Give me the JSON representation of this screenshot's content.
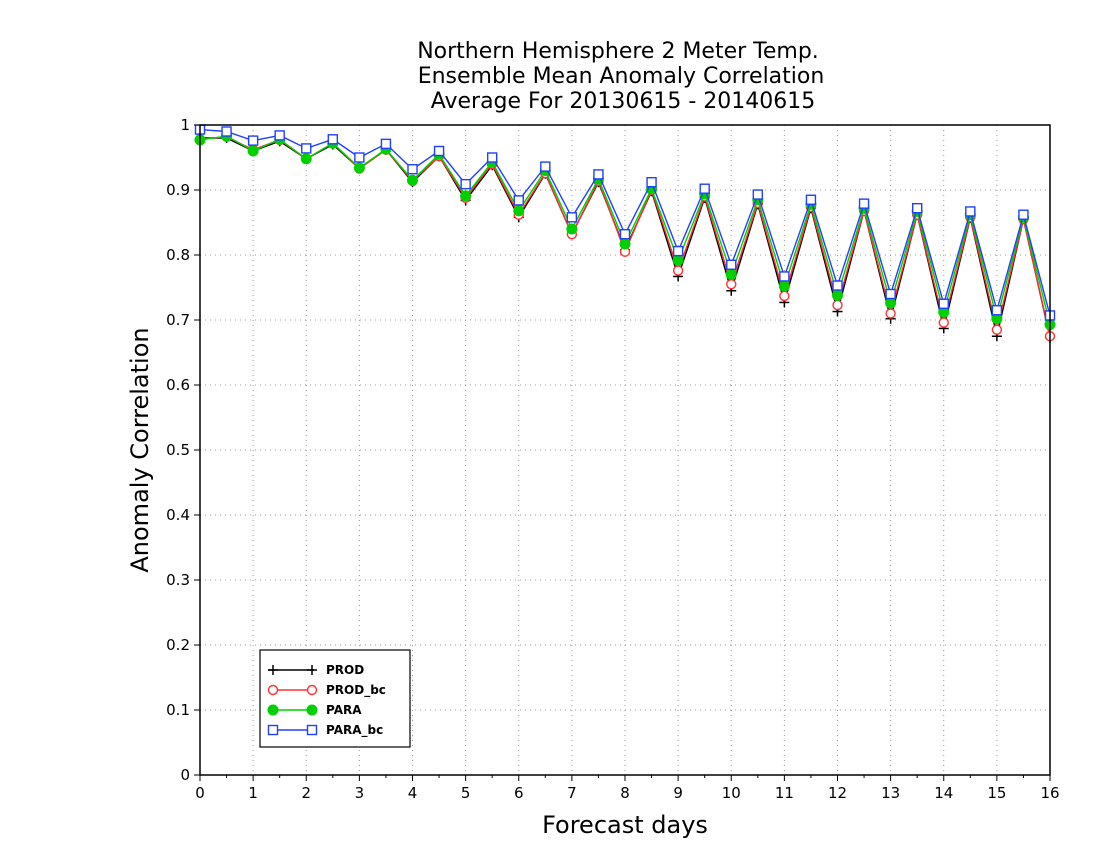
{
  "chart_data": {
    "type": "line",
    "title": [
      "Northern Hemisphere 2 Meter Temp.",
      "Ensemble Mean Anomaly Correlation",
      "Average For 20130615 - 20140615"
    ],
    "xlabel": "Forecast days",
    "ylabel": "Anomaly Correlation",
    "xlim": [
      0,
      16
    ],
    "ylim": [
      0,
      1
    ],
    "xticks": [
      "0",
      "1",
      "2",
      "3",
      "4",
      "5",
      "6",
      "7",
      "8",
      "9",
      "10",
      "11",
      "12",
      "13",
      "14",
      "15",
      "16"
    ],
    "yticks": [
      "0",
      "0.1",
      "0.2",
      "0.3",
      "0.4",
      "0.5",
      "0.6",
      "0.7",
      "0.8",
      "0.9",
      "1"
    ],
    "grid": true,
    "legend_position": "bottom-left",
    "x": [
      0,
      0.5,
      1,
      1.5,
      2,
      2.5,
      3,
      3.5,
      4,
      4.5,
      5,
      5.5,
      6,
      6.5,
      7,
      7.5,
      8,
      8.5,
      9,
      9.5,
      10,
      10.5,
      11,
      11.5,
      12,
      12.5,
      13,
      13.5,
      14,
      14.5,
      15,
      15.5,
      16
    ],
    "series": [
      {
        "name": "PROD",
        "color": "#000000",
        "marker": "plus",
        "values": [
          0.98,
          0.98,
          0.96,
          0.975,
          0.948,
          0.97,
          0.933,
          0.962,
          0.912,
          0.952,
          0.884,
          0.938,
          0.858,
          0.925,
          0.832,
          0.912,
          0.808,
          0.898,
          0.767,
          0.888,
          0.745,
          0.878,
          0.727,
          0.872,
          0.713,
          0.868,
          0.702,
          0.862,
          0.687,
          0.857,
          0.675,
          0.855,
          0.673
        ]
      },
      {
        "name": "PROD_bc",
        "color": "#ff3030",
        "marker": "circle",
        "values": [
          0.978,
          0.982,
          0.962,
          0.977,
          0.948,
          0.972,
          0.933,
          0.962,
          0.914,
          0.952,
          0.888,
          0.94,
          0.862,
          0.926,
          0.832,
          0.914,
          0.805,
          0.9,
          0.776,
          0.89,
          0.755,
          0.88,
          0.737,
          0.874,
          0.723,
          0.868,
          0.71,
          0.862,
          0.696,
          0.858,
          0.685,
          0.855,
          0.675
        ]
      },
      {
        "name": "PARA",
        "color": "#00d000",
        "marker": "dot",
        "values": [
          0.977,
          0.983,
          0.96,
          0.978,
          0.948,
          0.972,
          0.934,
          0.963,
          0.915,
          0.955,
          0.891,
          0.943,
          0.868,
          0.93,
          0.84,
          0.917,
          0.817,
          0.902,
          0.792,
          0.894,
          0.77,
          0.885,
          0.752,
          0.878,
          0.738,
          0.872,
          0.726,
          0.867,
          0.712,
          0.862,
          0.702,
          0.858,
          0.693
        ]
      },
      {
        "name": "PARA_bc",
        "color": "#2040ff",
        "marker": "square",
        "values": [
          0.993,
          0.99,
          0.976,
          0.984,
          0.964,
          0.978,
          0.95,
          0.971,
          0.932,
          0.96,
          0.909,
          0.95,
          0.884,
          0.936,
          0.858,
          0.924,
          0.832,
          0.912,
          0.806,
          0.902,
          0.785,
          0.893,
          0.767,
          0.885,
          0.753,
          0.879,
          0.74,
          0.872,
          0.725,
          0.867,
          0.715,
          0.862,
          0.707
        ]
      }
    ]
  }
}
